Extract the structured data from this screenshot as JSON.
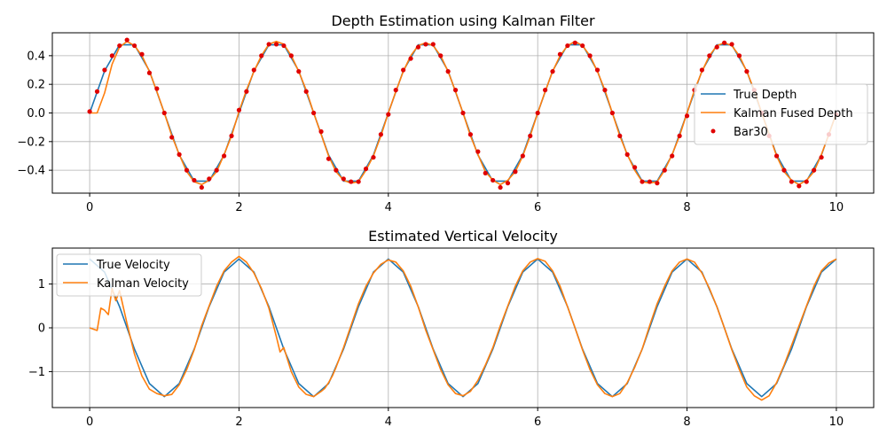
{
  "chart_data": [
    {
      "type": "line",
      "title": "Depth Estimation using Kalman Filter",
      "xlabel": "",
      "ylabel": "",
      "xlim": [
        -0.5,
        10.5
      ],
      "ylim": [
        -0.56,
        0.56
      ],
      "xticks": [
        0,
        2,
        4,
        6,
        8,
        10
      ],
      "xtick_labels": [
        "0",
        "2",
        "4",
        "6",
        "8",
        "10"
      ],
      "yticks": [
        -0.4,
        -0.2,
        0.0,
        0.2,
        0.4
      ],
      "ytick_labels": [
        "−0.4",
        "−0.2",
        "0.0",
        "0.2",
        "0.4"
      ],
      "grid": true,
      "legend_position": "center-right",
      "series": [
        {
          "name": "True Depth",
          "kind": "line",
          "color": "#1f77b4",
          "x": [
            0,
            0.2,
            0.4,
            0.6,
            0.8,
            1,
            1.2,
            1.4,
            1.6,
            1.8,
            2,
            2.2,
            2.4,
            2.6,
            2.8,
            3,
            3.2,
            3.4,
            3.6,
            3.8,
            4,
            4.2,
            4.4,
            4.6,
            4.8,
            5,
            5.2,
            5.4,
            5.6,
            5.8,
            6,
            6.2,
            6.4,
            6.6,
            6.8,
            7,
            7.2,
            7.4,
            7.6,
            7.8,
            8,
            8.2,
            8.4,
            8.6,
            8.8,
            9,
            9.2,
            9.4,
            9.6,
            9.8,
            10
          ],
          "values": [
            0,
            0.294,
            0.476,
            0.476,
            0.294,
            0,
            -0.294,
            -0.476,
            -0.476,
            -0.294,
            0,
            0.294,
            0.476,
            0.476,
            0.294,
            0,
            -0.294,
            -0.476,
            -0.476,
            -0.294,
            0,
            0.294,
            0.476,
            0.476,
            0.294,
            0,
            -0.294,
            -0.476,
            -0.476,
            -0.294,
            0,
            0.294,
            0.476,
            0.476,
            0.294,
            0,
            -0.294,
            -0.476,
            -0.476,
            -0.294,
            0,
            0.294,
            0.476,
            0.476,
            0.294,
            0,
            -0.294,
            -0.476,
            -0.476,
            -0.294,
            0
          ]
        },
        {
          "name": "Kalman Fused Depth",
          "kind": "line",
          "color": "#ff7f0e",
          "x": [
            0,
            0.1,
            0.2,
            0.3,
            0.4,
            0.5,
            0.6,
            0.7,
            0.8,
            0.9,
            1,
            1.1,
            1.2,
            1.3,
            1.4,
            1.5,
            1.6,
            1.7,
            1.8,
            1.9,
            2,
            2.1,
            2.2,
            2.3,
            2.4,
            2.5,
            2.6,
            2.7,
            2.8,
            2.9,
            3,
            3.1,
            3.2,
            3.3,
            3.4,
            3.5,
            3.6,
            3.7,
            3.8,
            3.9,
            4,
            4.1,
            4.2,
            4.3,
            4.4,
            4.5,
            4.6,
            4.7,
            4.8,
            4.9,
            5,
            5.1,
            5.2,
            5.3,
            5.4,
            5.5,
            5.6,
            5.7,
            5.8,
            5.9,
            6,
            6.1,
            6.2,
            6.3,
            6.4,
            6.5,
            6.6,
            6.7,
            6.8,
            6.9,
            7,
            7.1,
            7.2,
            7.3,
            7.4,
            7.5,
            7.6,
            7.7,
            7.8,
            7.9,
            8,
            8.1,
            8.2,
            8.3,
            8.4,
            8.5,
            8.6,
            8.7,
            8.8,
            8.9,
            9,
            9.1,
            9.2,
            9.3,
            9.4,
            9.5,
            9.6,
            9.7,
            9.8,
            9.9,
            10
          ],
          "values": [
            0,
            0.0,
            0.14,
            0.34,
            0.46,
            0.5,
            0.47,
            0.4,
            0.29,
            0.15,
            0,
            -0.16,
            -0.29,
            -0.41,
            -0.48,
            -0.5,
            -0.47,
            -0.41,
            -0.29,
            -0.16,
            0.01,
            0.16,
            0.29,
            0.4,
            0.48,
            0.5,
            0.48,
            0.4,
            0.29,
            0.16,
            0,
            -0.15,
            -0.3,
            -0.41,
            -0.47,
            -0.49,
            -0.48,
            -0.4,
            -0.3,
            -0.16,
            0,
            0.15,
            0.29,
            0.4,
            0.47,
            0.49,
            0.47,
            0.4,
            0.29,
            0.15,
            0,
            -0.16,
            -0.29,
            -0.41,
            -0.47,
            -0.5,
            -0.47,
            -0.41,
            -0.3,
            -0.16,
            0,
            0.15,
            0.29,
            0.4,
            0.47,
            0.5,
            0.47,
            0.4,
            0.29,
            0.16,
            0,
            -0.16,
            -0.29,
            -0.4,
            -0.48,
            -0.49,
            -0.48,
            -0.4,
            -0.29,
            -0.16,
            0,
            0.16,
            0.29,
            0.4,
            0.47,
            0.49,
            0.47,
            0.4,
            0.29,
            0.16,
            0,
            -0.15,
            -0.3,
            -0.41,
            -0.47,
            -0.5,
            -0.47,
            -0.41,
            -0.29,
            -0.15,
            0
          ]
        },
        {
          "name": "Bar30",
          "kind": "scatter",
          "color": "#e00000",
          "x": [
            0,
            0.1,
            0.2,
            0.3,
            0.4,
            0.5,
            0.6,
            0.7,
            0.8,
            0.9,
            1,
            1.1,
            1.2,
            1.3,
            1.4,
            1.5,
            1.6,
            1.7,
            1.8,
            1.9,
            2,
            2.1,
            2.2,
            2.3,
            2.4,
            2.5,
            2.6,
            2.7,
            2.8,
            2.9,
            3,
            3.1,
            3.2,
            3.3,
            3.4,
            3.5,
            3.6,
            3.7,
            3.8,
            3.9,
            4,
            4.1,
            4.2,
            4.3,
            4.4,
            4.5,
            4.6,
            4.7,
            4.8,
            4.9,
            5,
            5.1,
            5.2,
            5.3,
            5.4,
            5.5,
            5.6,
            5.7,
            5.8,
            5.9,
            6,
            6.1,
            6.2,
            6.3,
            6.4,
            6.5,
            6.6,
            6.7,
            6.8,
            6.9,
            7,
            7.1,
            7.2,
            7.3,
            7.4,
            7.5,
            7.6,
            7.7,
            7.8,
            7.9,
            8,
            8.1,
            8.2,
            8.3,
            8.4,
            8.5,
            8.6,
            8.7,
            8.8,
            8.9,
            9,
            9.1,
            9.2,
            9.3,
            9.4,
            9.5,
            9.6,
            9.7,
            9.8,
            9.9,
            10
          ],
          "values": [
            0.01,
            0.15,
            0.3,
            0.4,
            0.47,
            0.51,
            0.47,
            0.41,
            0.28,
            0.17,
            0,
            -0.17,
            -0.29,
            -0.4,
            -0.47,
            -0.52,
            -0.46,
            -0.4,
            -0.3,
            -0.16,
            0.02,
            0.15,
            0.3,
            0.4,
            0.48,
            0.48,
            0.47,
            0.4,
            0.29,
            0.15,
            0,
            -0.13,
            -0.32,
            -0.4,
            -0.46,
            -0.48,
            -0.48,
            -0.39,
            -0.31,
            -0.15,
            -0.01,
            0.16,
            0.3,
            0.38,
            0.46,
            0.48,
            0.48,
            0.4,
            0.29,
            0.16,
            0,
            -0.15,
            -0.27,
            -0.42,
            -0.47,
            -0.52,
            -0.49,
            -0.41,
            -0.3,
            -0.16,
            0,
            0.16,
            0.29,
            0.41,
            0.47,
            0.49,
            0.47,
            0.4,
            0.3,
            0.16,
            0,
            -0.16,
            -0.29,
            -0.38,
            -0.48,
            -0.48,
            -0.49,
            -0.4,
            -0.3,
            -0.16,
            -0.02,
            0.16,
            0.3,
            0.4,
            0.46,
            0.49,
            0.48,
            0.4,
            0.29,
            0.16,
            0,
            -0.16,
            -0.3,
            -0.4,
            -0.48,
            -0.51,
            -0.48,
            -0.4,
            -0.31,
            -0.15,
            -0.01
          ]
        }
      ]
    },
    {
      "type": "line",
      "title": "Estimated Vertical Velocity",
      "xlabel": "",
      "ylabel": "",
      "xlim": [
        -0.5,
        10.5
      ],
      "ylim": [
        -1.82,
        1.82
      ],
      "xticks": [
        0,
        2,
        4,
        6,
        8,
        10
      ],
      "xtick_labels": [
        "0",
        "2",
        "4",
        "6",
        "8",
        "10"
      ],
      "yticks": [
        -1,
        0,
        1
      ],
      "ytick_labels": [
        "−1",
        "0",
        "1"
      ],
      "grid": true,
      "legend_position": "top-left",
      "series": [
        {
          "name": "True Velocity",
          "kind": "line",
          "color": "#1f77b4",
          "x": [
            0,
            0.2,
            0.4,
            0.6,
            0.8,
            1,
            1.2,
            1.4,
            1.6,
            1.8,
            2,
            2.2,
            2.4,
            2.6,
            2.8,
            3,
            3.2,
            3.4,
            3.6,
            3.8,
            4,
            4.2,
            4.4,
            4.6,
            4.8,
            5,
            5.2,
            5.4,
            5.6,
            5.8,
            6,
            6.2,
            6.4,
            6.6,
            6.8,
            7,
            7.2,
            7.4,
            7.6,
            7.8,
            8,
            8.2,
            8.4,
            8.6,
            8.8,
            9,
            9.2,
            9.4,
            9.6,
            9.8,
            10
          ],
          "values": [
            1.571,
            1.271,
            0.485,
            -0.485,
            -1.271,
            -1.571,
            -1.271,
            -0.485,
            0.485,
            1.271,
            1.571,
            1.271,
            0.485,
            -0.485,
            -1.271,
            -1.571,
            -1.271,
            -0.485,
            0.485,
            1.271,
            1.571,
            1.271,
            0.485,
            -0.485,
            -1.271,
            -1.571,
            -1.271,
            -0.485,
            0.485,
            1.271,
            1.571,
            1.271,
            0.485,
            -0.485,
            -1.271,
            -1.571,
            -1.271,
            -0.485,
            0.485,
            1.271,
            1.571,
            1.271,
            0.485,
            -0.485,
            -1.271,
            -1.571,
            -1.271,
            -0.485,
            0.485,
            1.271,
            1.571
          ]
        },
        {
          "name": "Kalman Velocity",
          "kind": "line",
          "color": "#ff7f0e",
          "x": [
            0,
            0.1,
            0.15,
            0.2,
            0.25,
            0.3,
            0.35,
            0.4,
            0.5,
            0.6,
            0.7,
            0.8,
            0.9,
            1,
            1.1,
            1.2,
            1.3,
            1.4,
            1.5,
            1.6,
            1.7,
            1.8,
            1.9,
            2,
            2.1,
            2.2,
            2.3,
            2.4,
            2.5,
            2.55,
            2.6,
            2.7,
            2.8,
            2.9,
            3,
            3.1,
            3.15,
            3.2,
            3.25,
            3.3,
            3.4,
            3.5,
            3.6,
            3.7,
            3.8,
            3.9,
            4,
            4.1,
            4.2,
            4.3,
            4.4,
            4.5,
            4.6,
            4.7,
            4.8,
            4.9,
            5,
            5.1,
            5.2,
            5.3,
            5.4,
            5.5,
            5.6,
            5.7,
            5.8,
            5.9,
            6,
            6.1,
            6.2,
            6.3,
            6.4,
            6.5,
            6.6,
            6.7,
            6.8,
            6.9,
            7,
            7.1,
            7.2,
            7.3,
            7.4,
            7.5,
            7.6,
            7.7,
            7.8,
            7.9,
            8,
            8.1,
            8.2,
            8.3,
            8.4,
            8.5,
            8.6,
            8.7,
            8.8,
            8.9,
            9,
            9.1,
            9.2,
            9.3,
            9.4,
            9.5,
            9.6,
            9.7,
            9.8,
            9.9,
            10
          ],
          "values": [
            0,
            -0.06,
            0.45,
            0.4,
            0.3,
            0.9,
            0.62,
            0.85,
            0.1,
            -0.6,
            -1.1,
            -1.4,
            -1.5,
            -1.55,
            -1.52,
            -1.3,
            -0.95,
            -0.5,
            0.05,
            0.5,
            0.95,
            1.3,
            1.5,
            1.63,
            1.5,
            1.25,
            0.9,
            0.45,
            -0.2,
            -0.55,
            -0.45,
            -1.0,
            -1.35,
            -1.52,
            -1.57,
            -1.45,
            -1.38,
            -1.25,
            -1.1,
            -0.9,
            -0.45,
            0.05,
            0.55,
            0.95,
            1.25,
            1.45,
            1.55,
            1.5,
            1.3,
            0.95,
            0.48,
            -0.05,
            -0.5,
            -0.95,
            -1.3,
            -1.5,
            -1.55,
            -1.45,
            -1.2,
            -0.85,
            -0.45,
            0.05,
            0.5,
            0.95,
            1.3,
            1.5,
            1.58,
            1.52,
            1.3,
            0.95,
            0.48,
            0.0,
            -0.5,
            -0.95,
            -1.3,
            -1.5,
            -1.57,
            -1.5,
            -1.25,
            -0.9,
            -0.48,
            0.05,
            0.55,
            0.95,
            1.3,
            1.5,
            1.57,
            1.5,
            1.25,
            0.9,
            0.48,
            0.0,
            -0.5,
            -0.95,
            -1.35,
            -1.55,
            -1.65,
            -1.55,
            -1.25,
            -0.85,
            -0.4,
            0.05,
            0.5,
            0.95,
            1.3,
            1.48,
            1.57
          ]
        }
      ]
    }
  ]
}
